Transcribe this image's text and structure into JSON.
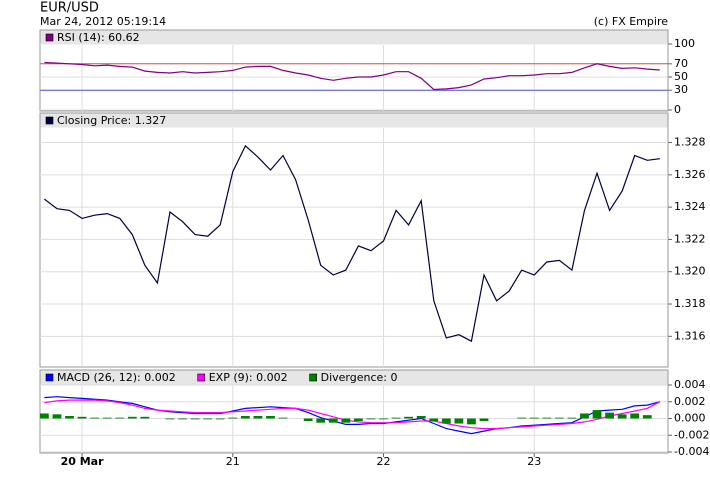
{
  "header": {
    "title": "EUR/USD",
    "timestamp": "Mar 24, 2012 05:19:14",
    "credit": "(c) FX Empire"
  },
  "chart_data": [
    {
      "type": "line",
      "x": [
        -6,
        -4,
        -2,
        0,
        2,
        4,
        6,
        8,
        10,
        12,
        14,
        16,
        18,
        20,
        22,
        24,
        26,
        28,
        30,
        32,
        34,
        36,
        38,
        40,
        42,
        44,
        46,
        48,
        50,
        52,
        54,
        56,
        58,
        60,
        62,
        64,
        66,
        68,
        70,
        72,
        74,
        76,
        78,
        80,
        82,
        84,
        86,
        88,
        90,
        92
      ],
      "xlim": [
        -6.7,
        93.3
      ],
      "ylim": [
        0,
        100
      ],
      "yticks": [
        0,
        30,
        50,
        70,
        100
      ],
      "grid": true,
      "hlines": [
        {
          "value": 70,
          "color": "#e05050"
        },
        {
          "value": 30,
          "color": "#5050e0"
        }
      ],
      "series": [
        {
          "name": "RSI (14): 60.62",
          "color": "#800080",
          "values": [
            72,
            71,
            70,
            69,
            67,
            68,
            66,
            65,
            59,
            57,
            56,
            58,
            56,
            57,
            58,
            60,
            65,
            66,
            66,
            60,
            56,
            53,
            48,
            45,
            48,
            50,
            50,
            53,
            58,
            58,
            48,
            31,
            32,
            34,
            38,
            47,
            49,
            52,
            52,
            53,
            55,
            55,
            57,
            64,
            70,
            66,
            63,
            64,
            62,
            60.62
          ]
        }
      ]
    },
    {
      "type": "line",
      "x": [
        -6,
        -4,
        -2,
        0,
        2,
        4,
        6,
        8,
        10,
        12,
        14,
        16,
        18,
        20,
        22,
        24,
        26,
        28,
        30,
        32,
        34,
        36,
        38,
        40,
        42,
        44,
        46,
        48,
        50,
        52,
        54,
        56,
        58,
        60,
        62,
        64,
        66,
        68,
        70,
        72,
        74,
        76,
        78,
        80,
        82,
        84,
        86,
        88,
        90,
        92
      ],
      "xlim": [
        -6.7,
        93.3
      ],
      "ylim": [
        1.3141,
        1.3289
      ],
      "yticks": [
        1.316,
        1.318,
        {
          "value": 1.32,
          "label": "1.320"
        },
        1.322,
        1.324,
        1.326,
        1.328
      ],
      "grid": true,
      "series": [
        {
          "name": "Closing Price: 1.327",
          "color": "#000040",
          "values": [
            1.3245,
            1.3239,
            1.3238,
            1.3233,
            1.3235,
            1.3236,
            1.3233,
            1.3223,
            1.3204,
            1.3193,
            1.3237,
            1.3231,
            1.3223,
            1.3222,
            1.3229,
            1.3262,
            1.3278,
            1.3271,
            1.3263,
            1.3272,
            1.3257,
            1.3232,
            1.3204,
            1.3198,
            1.3201,
            1.3216,
            1.3213,
            1.3219,
            1.3238,
            1.3229,
            1.3244,
            1.3182,
            1.3159,
            1.3161,
            1.3157,
            1.3198,
            1.3182,
            1.3188,
            1.3201,
            1.3198,
            1.3206,
            1.3207,
            1.3201,
            1.3238,
            1.3261,
            1.3238,
            1.325,
            1.3272,
            1.3269,
            1.327
          ]
        }
      ]
    },
    {
      "type": "line",
      "x": [
        -6,
        -4,
        -2,
        0,
        2,
        4,
        6,
        8,
        10,
        12,
        14,
        16,
        18,
        20,
        22,
        24,
        26,
        28,
        30,
        32,
        34,
        36,
        38,
        40,
        42,
        44,
        46,
        48,
        50,
        52,
        54,
        56,
        58,
        60,
        62,
        64,
        66,
        68,
        70,
        72,
        74,
        76,
        78,
        80,
        82,
        84,
        86,
        88,
        90,
        92
      ],
      "xlim": [
        -6.7,
        93.3
      ],
      "xticks": [
        {
          "value": 0,
          "label": "20 Mar"
        },
        {
          "value": 24,
          "label": "21"
        },
        {
          "value": 48,
          "label": "22"
        },
        {
          "value": 72,
          "label": "23"
        }
      ],
      "ylim": [
        -0.004,
        0.004
      ],
      "yticks": [
        -0.004,
        -0.002,
        {
          "value": 0,
          "label": "0.000"
        },
        0.002,
        0.004
      ],
      "grid": true,
      "series": [
        {
          "name": "MACD (26, 12): 0.002",
          "color": "#0000ff",
          "values": [
            0.0025,
            0.0026,
            0.0025,
            0.0024,
            0.0023,
            0.0022,
            0.002,
            0.0018,
            0.0014,
            0.001,
            0.0008,
            0.0007,
            0.0006,
            0.0006,
            0.0006,
            0.0009,
            0.0012,
            0.0013,
            0.0014,
            0.0013,
            0.0012,
            0.0007,
            0.0001,
            -0.0003,
            -0.0007,
            -0.0007,
            -0.0006,
            -0.0006,
            -0.0004,
            -0.0002,
            0,
            -0.0006,
            -0.0012,
            -0.0015,
            -0.0018,
            -0.0015,
            -0.0012,
            -0.0011,
            -0.0009,
            -0.0008,
            -0.0007,
            -0.0006,
            -0.0005,
            0.0002,
            0.0009,
            0.001,
            0.0011,
            0.0015,
            0.0016,
            0.002
          ]
        },
        {
          "name": "EXP (9): 0.002",
          "color": "#ff00ff",
          "values": [
            0.0019,
            0.0021,
            0.0022,
            0.0022,
            0.0022,
            0.0021,
            0.0019,
            0.0016,
            0.0012,
            0.001,
            0.0009,
            0.0008,
            0.0007,
            0.0007,
            0.0007,
            0.0008,
            0.0009,
            0.001,
            0.0011,
            0.0012,
            0.0012,
            0.001,
            0.0006,
            0.0002,
            -0.0002,
            -0.0004,
            -0.0005,
            -0.0005,
            -0.0005,
            -0.0004,
            -0.0003,
            -0.0003,
            -0.0006,
            -0.0009,
            -0.0011,
            -0.0012,
            -0.0012,
            -0.0011,
            -0.001,
            -0.0009,
            -0.0008,
            -0.0007,
            -0.0006,
            -0.0004,
            -0.0001,
            0.0003,
            0.0006,
            0.0009,
            0.0012,
            0.002
          ]
        },
        {
          "name": "Divergence: 0",
          "color": "#008000",
          "type": "bar",
          "values": [
            0.0006,
            0.0005,
            0.0003,
            0.0002,
            0.0001,
            0.0001,
            0.0001,
            0.0002,
            0.0002,
            0,
            -0.0001,
            -0.0001,
            -0.0001,
            -0.0001,
            -0.0001,
            0.0001,
            0.0003,
            0.0003,
            0.0003,
            0.0001,
            0,
            -0.0003,
            -0.0005,
            -0.0005,
            -0.0005,
            -0.0003,
            -0.0001,
            -0.0001,
            0.0001,
            0.0002,
            0.0003,
            -0.0003,
            -0.0006,
            -0.0006,
            -0.0007,
            -0.0003,
            0,
            0,
            0.0001,
            0.0001,
            0.0001,
            0.0001,
            0.0001,
            0.0006,
            0.001,
            0.0007,
            0.0005,
            0.0006,
            0.0004,
            0
          ]
        }
      ]
    }
  ]
}
